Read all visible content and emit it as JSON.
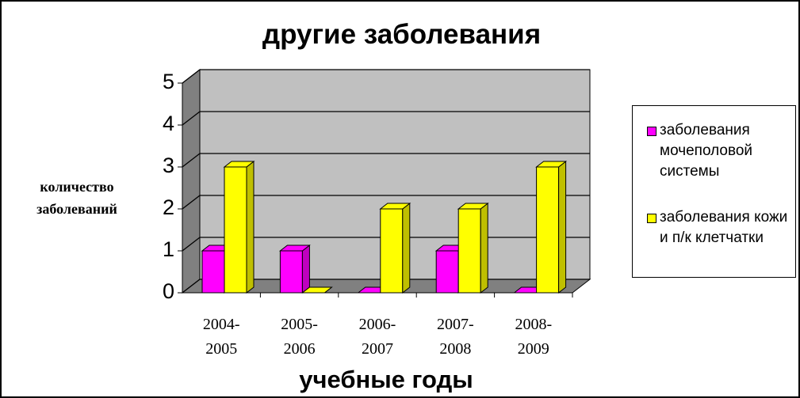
{
  "chart_data": {
    "type": "bar3d",
    "title": "другие заболевания",
    "x_label": "учебные годы",
    "y_label": "количество заболеваний",
    "categories": [
      "2004-2005",
      "2005-2006",
      "2006-2007",
      "2007-2008",
      "2008-2009"
    ],
    "series": [
      {
        "name": "заболевания мочеполовой системы",
        "color": "#ff00ff",
        "values": [
          1,
          1,
          0,
          1,
          0
        ]
      },
      {
        "name": "заболевания кожи и п/к клетчатки",
        "color": "#ffff00",
        "values": [
          3,
          0,
          2,
          2,
          3
        ]
      }
    ],
    "ylim": [
      0,
      5
    ],
    "yticks": [
      0,
      1,
      2,
      3,
      4,
      5
    ],
    "grid": true,
    "legend": "right"
  }
}
